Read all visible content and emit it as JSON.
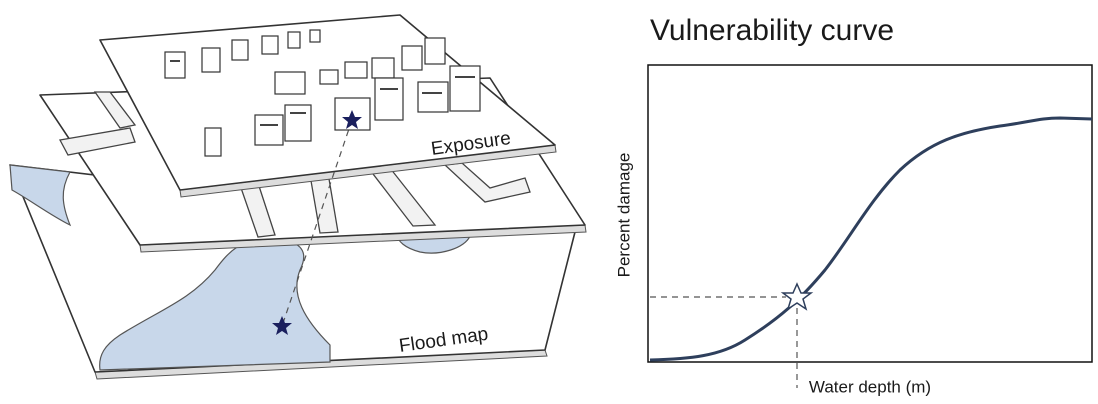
{
  "illustration": {
    "layers": [
      "Exposure",
      "Flood map"
    ]
  },
  "chart": {
    "title": "Vulnerability curve",
    "x_axis_label": "Water depth (m)",
    "y_axis_label": "Percent damage"
  }
}
